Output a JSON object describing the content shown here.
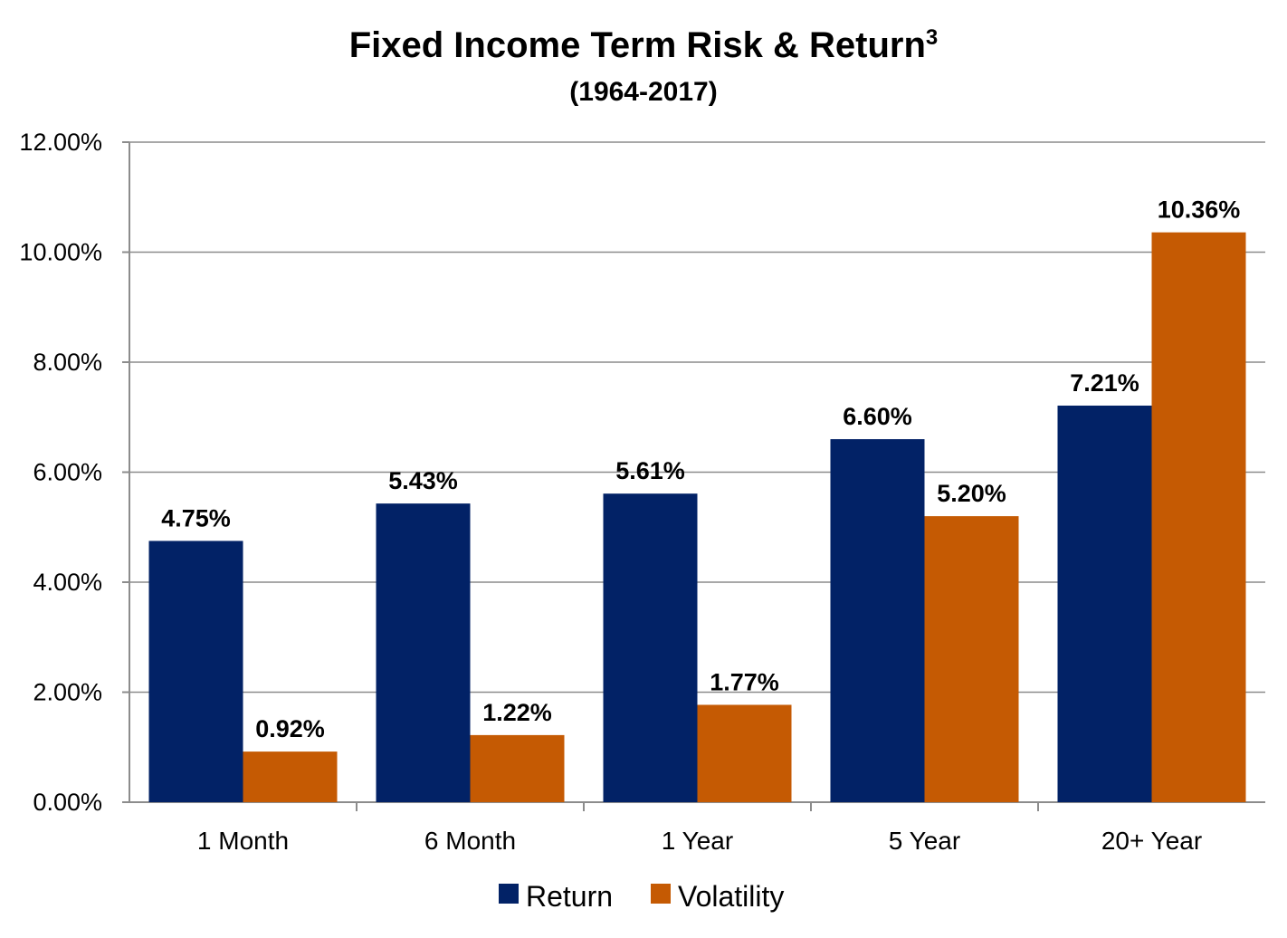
{
  "chart_data": {
    "type": "bar",
    "title": "Fixed Income Term Risk & Return",
    "title_superscript": "3",
    "subtitle": "(1964-2017)",
    "xlabel": "",
    "ylabel": "",
    "categories": [
      "1 Month",
      "6 Month",
      "1 Year",
      "5 Year",
      "20+ Year"
    ],
    "series": [
      {
        "name": "Return",
        "color": "#022266",
        "values": [
          4.75,
          5.43,
          5.61,
          6.6,
          7.21
        ],
        "labels": [
          "4.75%",
          "5.43%",
          "5.61%",
          "6.60%",
          "7.21%"
        ]
      },
      {
        "name": "Volatility",
        "color": "#c55a03",
        "values": [
          0.92,
          1.22,
          1.77,
          5.2,
          10.36
        ],
        "labels": [
          "0.92%",
          "1.22%",
          "1.77%",
          "5.20%",
          "10.36%"
        ]
      }
    ],
    "ylim": [
      0,
      12
    ],
    "yticks": [
      0,
      2,
      4,
      6,
      8,
      10,
      12
    ],
    "ytick_labels": [
      "0.00%",
      "2.00%",
      "4.00%",
      "6.00%",
      "8.00%",
      "10.00%",
      "12.00%"
    ],
    "grid": true,
    "legend_position": "bottom-center"
  }
}
